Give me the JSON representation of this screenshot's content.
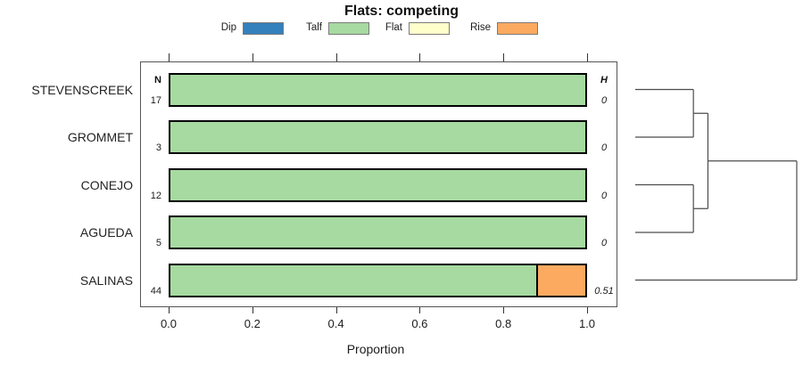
{
  "title": "Flats: competing",
  "legend": {
    "items": [
      {
        "label": "Dip",
        "color": "#3380bd"
      },
      {
        "label": "Talf",
        "color": "#a6daa0"
      },
      {
        "label": "Flat",
        "color": "#ffffcc"
      },
      {
        "label": "Rise",
        "color": "#fbaa60"
      }
    ]
  },
  "chart_data": {
    "type": "bar",
    "orientation": "horizontal",
    "stacked": true,
    "title": "Flats: competing",
    "xlabel": "Proportion",
    "xlim": [
      0,
      1
    ],
    "x_ticks": [
      0.0,
      0.2,
      0.4,
      0.6,
      0.8,
      1.0
    ],
    "x_tick_labels": [
      "0.0",
      "0.2",
      "0.4",
      "0.6",
      "0.8",
      "1.0"
    ],
    "categories": [
      "STEVENSCREEK",
      "GROMMET",
      "CONEJO",
      "AGUEDA",
      "SALINAS"
    ],
    "n_header": "N",
    "h_header": "H",
    "n_values": [
      "17",
      "3",
      "12",
      "5",
      "44"
    ],
    "h_values": [
      "0",
      "0",
      "0",
      "0",
      "0.51"
    ],
    "series": [
      {
        "name": "Dip",
        "values": [
          0,
          0,
          0,
          0,
          0
        ]
      },
      {
        "name": "Talf",
        "values": [
          1,
          1,
          1,
          1,
          0.886
        ]
      },
      {
        "name": "Flat",
        "values": [
          0,
          0,
          0,
          0,
          0
        ]
      },
      {
        "name": "Rise",
        "values": [
          0,
          0,
          0,
          0,
          0.114
        ]
      }
    ],
    "dendrogram": {
      "leaf_order": [
        "STEVENSCREEK",
        "GROMMET",
        "CONEJO",
        "AGUEDA",
        "SALINAS"
      ],
      "merges": [
        {
          "children": [
            "leaf:0",
            "leaf:1"
          ],
          "height": 0.36
        },
        {
          "children": [
            "leaf:2",
            "leaf:3"
          ],
          "height": 0.36
        },
        {
          "children": [
            "merge:0",
            "merge:1"
          ],
          "height": 0.45
        },
        {
          "children": [
            "merge:2",
            "leaf:4"
          ],
          "height": 1.0
        }
      ]
    }
  }
}
